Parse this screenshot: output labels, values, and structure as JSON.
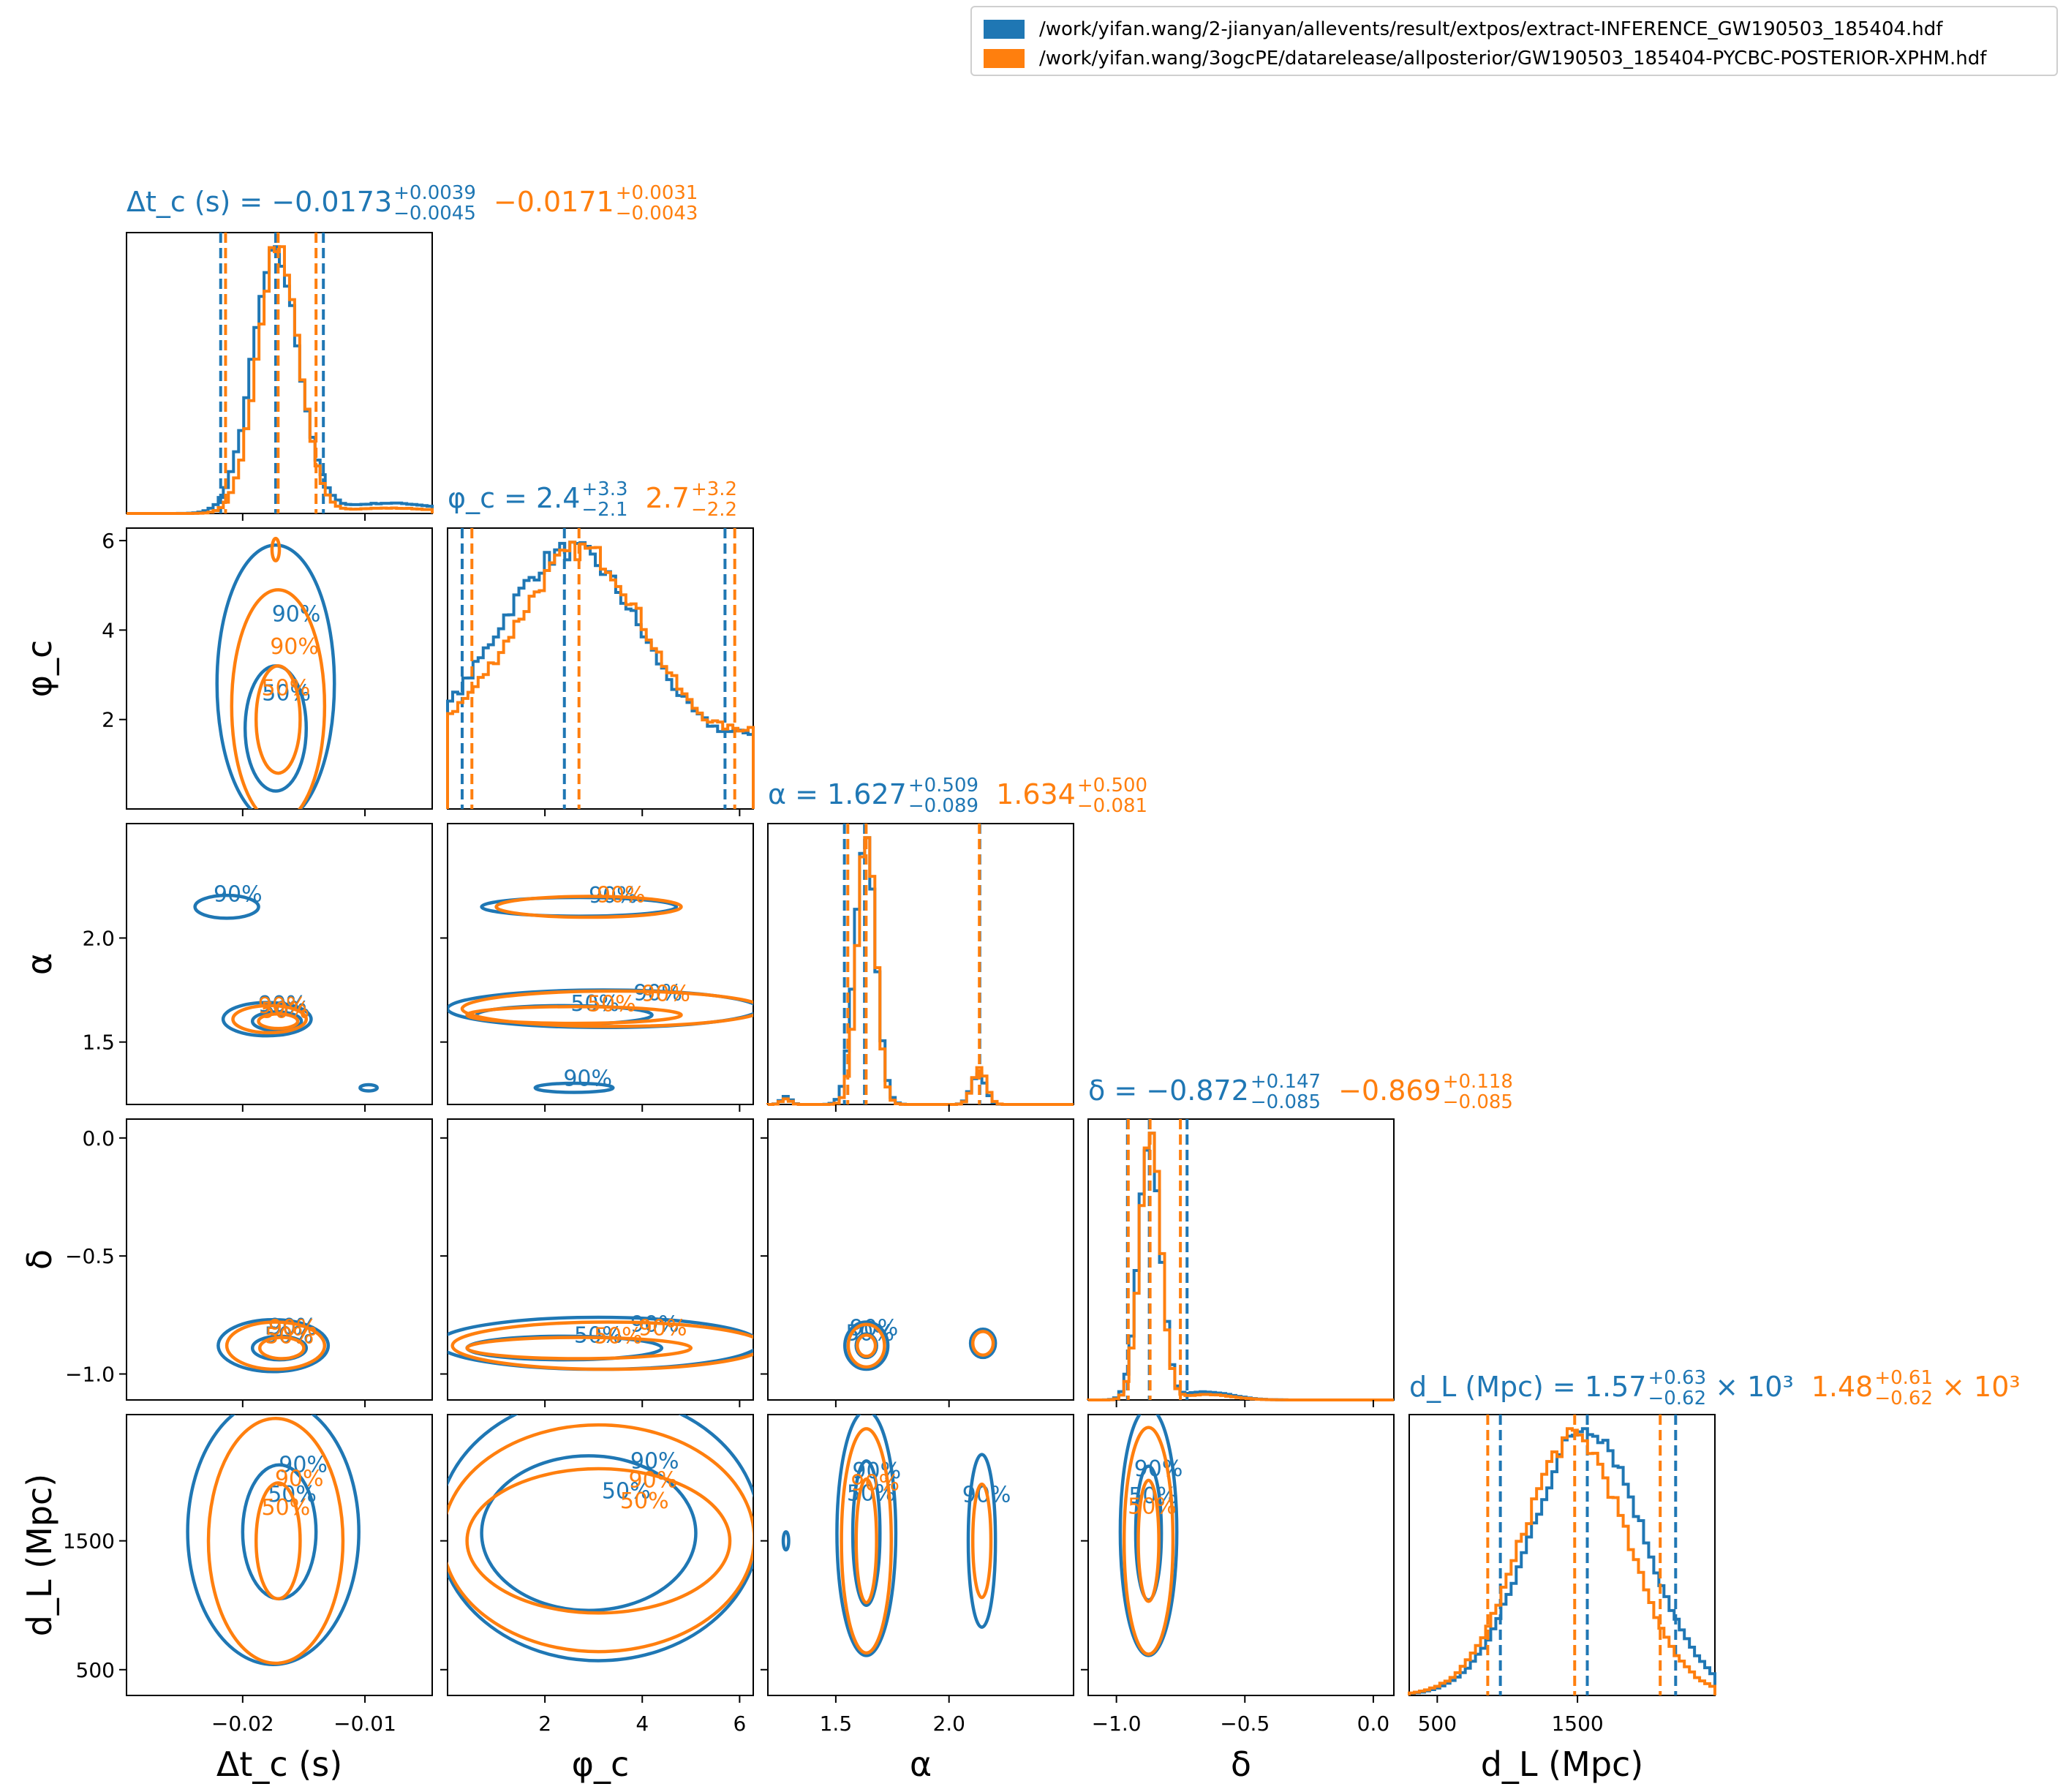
{
  "legend": {
    "entries": [
      {
        "label": "/work/yifan.wang/2-jianyan/allevents/result/extpos/extract-INFERENCE_GW190503_185404.hdf",
        "color": "#1f77b4"
      },
      {
        "label": "/work/yifan.wang/3ogcPE/datarelease/allposterior/GW190503_185404-PYCBC-POSTERIOR-XPHM.hdf",
        "color": "#ff7f0e"
      }
    ]
  },
  "colors": {
    "series1": "#1f77b4",
    "series2": "#ff7f0e"
  },
  "chart_data": {
    "type": "corner",
    "parameters": [
      {
        "key": "dtc",
        "label": "Δt_c (s)",
        "title_prefix": "Δt_c (s) =",
        "summary": [
          {
            "series": "series1",
            "median": "−0.0173",
            "plus": "+0.0039",
            "minus": "−0.0045",
            "suffix": ""
          },
          {
            "series": "series2",
            "median": "−0.0171",
            "plus": "+0.0031",
            "minus": "−0.0043",
            "suffix": ""
          }
        ],
        "range": [
          -0.0295,
          -0.0045
        ],
        "ticks": [
          -0.02,
          -0.01
        ],
        "tick_labels": [
          "−0.02",
          "−0.01"
        ],
        "quantile_lines": {
          "series1": [
            -0.0218,
            -0.0173,
            -0.0134
          ],
          "series2": [
            -0.0214,
            -0.0171,
            -0.014
          ]
        }
      },
      {
        "key": "phic",
        "label": "φ_c",
        "title_prefix": "φ_c =",
        "summary": [
          {
            "series": "series1",
            "median": "2.4",
            "plus": "+3.3",
            "minus": "−2.1",
            "suffix": ""
          },
          {
            "series": "series2",
            "median": "2.7",
            "plus": "+3.2",
            "minus": "−2.2",
            "suffix": ""
          }
        ],
        "range": [
          0.0,
          6.28
        ],
        "ticks": [
          2,
          4,
          6
        ],
        "tick_labels": [
          "2",
          "4",
          "6"
        ],
        "quantile_lines": {
          "series1": [
            0.3,
            2.4,
            5.7
          ],
          "series2": [
            0.5,
            2.7,
            5.9
          ]
        }
      },
      {
        "key": "alpha",
        "label": "α",
        "title_prefix": "α =",
        "summary": [
          {
            "series": "series1",
            "median": "1.627",
            "plus": "+0.509",
            "minus": "−0.089",
            "suffix": ""
          },
          {
            "series": "series2",
            "median": "1.634",
            "plus": "+0.500",
            "minus": "−0.081",
            "suffix": ""
          }
        ],
        "range": [
          1.2,
          2.55
        ],
        "ticks": [
          1.5,
          2.0
        ],
        "tick_labels": [
          "1.5",
          "2.0"
        ],
        "quantile_lines": {
          "series1": [
            1.538,
            1.627,
            2.136
          ],
          "series2": [
            1.553,
            1.634,
            2.134
          ]
        }
      },
      {
        "key": "delta",
        "label": "δ",
        "title_prefix": "δ =",
        "summary": [
          {
            "series": "series1",
            "median": "−0.872",
            "plus": "+0.147",
            "minus": "−0.085",
            "suffix": ""
          },
          {
            "series": "series2",
            "median": "−0.869",
            "plus": "+0.118",
            "minus": "−0.085",
            "suffix": ""
          }
        ],
        "range": [
          -1.11,
          0.08
        ],
        "ticks": [
          -1.0,
          -0.5,
          0.0
        ],
        "tick_labels": [
          "−1.0",
          "−0.5",
          "0.0"
        ],
        "quantile_lines": {
          "series1": [
            -0.957,
            -0.872,
            -0.725
          ],
          "series2": [
            -0.954,
            -0.869,
            -0.751
          ]
        }
      },
      {
        "key": "dl",
        "label": "d_L (Mpc)",
        "title_prefix": "d_L (Mpc) =",
        "summary": [
          {
            "series": "series1",
            "median": "1.57",
            "plus": "+0.63",
            "minus": "−0.62",
            "suffix": "× 10³"
          },
          {
            "series": "series2",
            "median": "1.48",
            "plus": "+0.61",
            "minus": "−0.62",
            "suffix": "× 10³"
          }
        ],
        "range": [
          300,
          2480
        ],
        "ticks": [
          500,
          1500
        ],
        "tick_labels": [
          "500",
          "1500"
        ],
        "quantile_lines": {
          "series1": [
            950,
            1570,
            2200
          ],
          "series2": [
            860,
            1480,
            2090
          ]
        }
      }
    ],
    "contour_levels": [
      "50%",
      "90%"
    ],
    "histograms": {
      "dtc": {
        "series1": {
          "mu": -0.0173,
          "sigma": 0.0019,
          "tail": 0.04
        },
        "series2": {
          "mu": -0.0171,
          "sigma": 0.0017,
          "tail": 0.02
        }
      },
      "phic": {
        "series1": {
          "mu": 2.5,
          "sigma": 1.3,
          "base": 0.28
        },
        "series2": {
          "mu": 2.7,
          "sigma": 1.2,
          "base": 0.3
        }
      },
      "alpha": {
        "series1": {
          "peaks": [
            [
              1.63,
              0.045,
              1.0
            ],
            [
              2.13,
              0.03,
              0.12
            ],
            [
              1.28,
              0.02,
              0.03
            ]
          ]
        },
        "series2": {
          "peaks": [
            [
              1.635,
              0.04,
              1.0
            ],
            [
              2.135,
              0.03,
              0.13
            ],
            [
              1.28,
              0.02,
              0.02
            ]
          ]
        }
      },
      "delta": {
        "series1": {
          "mu": -0.87,
          "sigma": 0.042,
          "tail": 0.03
        },
        "series2": {
          "mu": -0.868,
          "sigma": 0.04,
          "tail": 0.02
        }
      },
      "dl": {
        "series1": {
          "mu": 1570,
          "sigma": 400
        },
        "series2": {
          "mu": 1480,
          "sigma": 380
        }
      }
    },
    "contours": [
      {
        "x": "dtc",
        "y": "phic",
        "ellipses": [
          {
            "series": "series1",
            "cx": -0.0173,
            "cy": 2.8,
            "rx": 0.0048,
            "ry": 3.1,
            "level": "90%"
          },
          {
            "series": "series1",
            "cx": -0.0173,
            "cy": 1.8,
            "rx": 0.0025,
            "ry": 1.4,
            "level": "50%"
          },
          {
            "series": "series2",
            "cx": -0.0171,
            "cy": 2.3,
            "rx": 0.0038,
            "ry": 2.6,
            "level": "90%"
          },
          {
            "series": "series2",
            "cx": -0.0171,
            "cy": 2.0,
            "rx": 0.0018,
            "ry": 1.2,
            "level": "50%"
          },
          {
            "series": "series2",
            "cx": -0.0173,
            "cy": 5.8,
            "rx": 0.0003,
            "ry": 0.25,
            "level": ""
          }
        ]
      },
      {
        "x": "dtc",
        "y": "alpha",
        "ellipses": [
          {
            "series": "series1",
            "cx": -0.0213,
            "cy": 2.15,
            "rx": 0.0026,
            "ry": 0.055,
            "level": "90%"
          },
          {
            "series": "series1",
            "cx": -0.018,
            "cy": 1.61,
            "rx": 0.0036,
            "ry": 0.08,
            "level": "90%"
          },
          {
            "series": "series1",
            "cx": -0.0172,
            "cy": 1.6,
            "rx": 0.002,
            "ry": 0.045,
            "level": "50%"
          },
          {
            "series": "series2",
            "cx": -0.0178,
            "cy": 1.61,
            "rx": 0.003,
            "ry": 0.065,
            "level": "90%"
          },
          {
            "series": "series2",
            "cx": -0.0171,
            "cy": 1.6,
            "rx": 0.0016,
            "ry": 0.035,
            "level": "50%"
          },
          {
            "series": "series1",
            "cx": -0.0097,
            "cy": 1.28,
            "rx": 0.0007,
            "ry": 0.015,
            "level": ""
          }
        ]
      },
      {
        "x": "phic",
        "y": "alpha",
        "ellipses": [
          {
            "series": "series1",
            "cx": 2.7,
            "cy": 2.15,
            "rx": 2.0,
            "ry": 0.045,
            "level": "90%"
          },
          {
            "series": "series2",
            "cx": 2.9,
            "cy": 2.15,
            "rx": 1.9,
            "ry": 0.05,
            "level": "90%"
          },
          {
            "series": "series1",
            "cx": 3.2,
            "cy": 1.66,
            "rx": 3.2,
            "ry": 0.09,
            "level": "90%"
          },
          {
            "series": "series1",
            "cx": 2.4,
            "cy": 1.63,
            "rx": 1.8,
            "ry": 0.045,
            "level": "50%"
          },
          {
            "series": "series2",
            "cx": 3.4,
            "cy": 1.66,
            "rx": 3.1,
            "ry": 0.085,
            "level": "90%"
          },
          {
            "series": "series2",
            "cx": 2.6,
            "cy": 1.63,
            "rx": 2.2,
            "ry": 0.04,
            "level": "50%"
          },
          {
            "series": "series1",
            "cx": 2.6,
            "cy": 1.28,
            "rx": 0.8,
            "ry": 0.022,
            "level": "90%"
          }
        ]
      },
      {
        "x": "dtc",
        "y": "delta",
        "ellipses": [
          {
            "series": "series1",
            "cx": -0.0175,
            "cy": -0.88,
            "rx": 0.0045,
            "ry": 0.11,
            "level": "90%"
          },
          {
            "series": "series1",
            "cx": -0.017,
            "cy": -0.89,
            "rx": 0.0022,
            "ry": 0.05,
            "level": "50%"
          },
          {
            "series": "series2",
            "cx": -0.0173,
            "cy": -0.88,
            "rx": 0.004,
            "ry": 0.1,
            "level": "90%"
          },
          {
            "series": "series2",
            "cx": -0.0168,
            "cy": -0.89,
            "rx": 0.0018,
            "ry": 0.045,
            "level": "50%"
          }
        ]
      },
      {
        "x": "phic",
        "y": "delta",
        "ellipses": [
          {
            "series": "series1",
            "cx": 3.1,
            "cy": -0.87,
            "rx": 3.3,
            "ry": 0.11,
            "level": "90%"
          },
          {
            "series": "series1",
            "cx": 2.4,
            "cy": -0.89,
            "rx": 2.0,
            "ry": 0.05,
            "level": "50%"
          },
          {
            "series": "series2",
            "cx": 3.3,
            "cy": -0.88,
            "rx": 3.2,
            "ry": 0.1,
            "level": "90%"
          },
          {
            "series": "series2",
            "cx": 2.7,
            "cy": -0.89,
            "rx": 2.3,
            "ry": 0.045,
            "level": "50%"
          }
        ]
      },
      {
        "x": "alpha",
        "y": "delta",
        "ellipses": [
          {
            "series": "series1",
            "cx": 1.635,
            "cy": -0.88,
            "rx": 0.095,
            "ry": 0.1,
            "level": "90%"
          },
          {
            "series": "series1",
            "cx": 1.635,
            "cy": -0.88,
            "rx": 0.045,
            "ry": 0.05,
            "level": "50%"
          },
          {
            "series": "series2",
            "cx": 1.635,
            "cy": -0.88,
            "rx": 0.08,
            "ry": 0.09,
            "level": ""
          },
          {
            "series": "series2",
            "cx": 1.635,
            "cy": -0.88,
            "rx": 0.04,
            "ry": 0.045,
            "level": ""
          },
          {
            "series": "series1",
            "cx": 2.15,
            "cy": -0.87,
            "rx": 0.055,
            "ry": 0.06,
            "level": ""
          },
          {
            "series": "series2",
            "cx": 2.15,
            "cy": -0.87,
            "rx": 0.045,
            "ry": 0.05,
            "level": ""
          }
        ]
      },
      {
        "x": "dtc",
        "y": "dl",
        "ellipses": [
          {
            "series": "series1",
            "cx": -0.0175,
            "cy": 1570,
            "rx": 0.007,
            "ry": 1030,
            "level": "90%"
          },
          {
            "series": "series1",
            "cx": -0.017,
            "cy": 1570,
            "rx": 0.003,
            "ry": 520,
            "level": "50%"
          },
          {
            "series": "series2",
            "cx": -0.0173,
            "cy": 1500,
            "rx": 0.0055,
            "ry": 950,
            "level": "90%"
          },
          {
            "series": "series2",
            "cx": -0.0171,
            "cy": 1500,
            "rx": 0.0018,
            "ry": 450,
            "level": "50%"
          }
        ]
      },
      {
        "x": "phic",
        "y": "dl",
        "ellipses": [
          {
            "series": "series1",
            "cx": 3.1,
            "cy": 1600,
            "rx": 3.3,
            "ry": 1030,
            "level": "90%"
          },
          {
            "series": "series1",
            "cx": 2.9,
            "cy": 1560,
            "rx": 2.2,
            "ry": 600,
            "level": "50%"
          },
          {
            "series": "series2",
            "cx": 3.1,
            "cy": 1520,
            "rx": 3.2,
            "ry": 880,
            "level": "90%"
          },
          {
            "series": "series2",
            "cx": 3.1,
            "cy": 1500,
            "rx": 2.7,
            "ry": 560,
            "level": "50%"
          }
        ]
      },
      {
        "x": "alpha",
        "y": "dl",
        "ellipses": [
          {
            "series": "series1",
            "cx": 1.635,
            "cy": 1560,
            "rx": 0.13,
            "ry": 950,
            "level": "90%"
          },
          {
            "series": "series1",
            "cx": 1.635,
            "cy": 1560,
            "rx": 0.06,
            "ry": 560,
            "level": "50%"
          },
          {
            "series": "series2",
            "cx": 1.635,
            "cy": 1500,
            "rx": 0.11,
            "ry": 870,
            "level": "90%"
          },
          {
            "series": "series2",
            "cx": 1.635,
            "cy": 1500,
            "rx": 0.045,
            "ry": 480,
            "level": ""
          },
          {
            "series": "series1",
            "cx": 2.145,
            "cy": 1500,
            "rx": 0.06,
            "ry": 670,
            "level": "90%"
          },
          {
            "series": "series2",
            "cx": 2.145,
            "cy": 1500,
            "rx": 0.04,
            "ry": 440,
            "level": ""
          },
          {
            "series": "series1",
            "cx": 1.28,
            "cy": 1500,
            "rx": 0.012,
            "ry": 70,
            "level": ""
          }
        ]
      },
      {
        "x": "delta",
        "y": "dl",
        "ellipses": [
          {
            "series": "series1",
            "cx": -0.875,
            "cy": 1570,
            "rx": 0.11,
            "ry": 960,
            "level": "90%"
          },
          {
            "series": "series1",
            "cx": -0.875,
            "cy": 1560,
            "rx": 0.05,
            "ry": 520,
            "level": "50%"
          },
          {
            "series": "series2",
            "cx": -0.875,
            "cy": 1500,
            "rx": 0.095,
            "ry": 880,
            "level": ""
          },
          {
            "series": "series2",
            "cx": -0.875,
            "cy": 1500,
            "rx": 0.04,
            "ry": 470,
            "level": "50%"
          }
        ]
      }
    ]
  }
}
